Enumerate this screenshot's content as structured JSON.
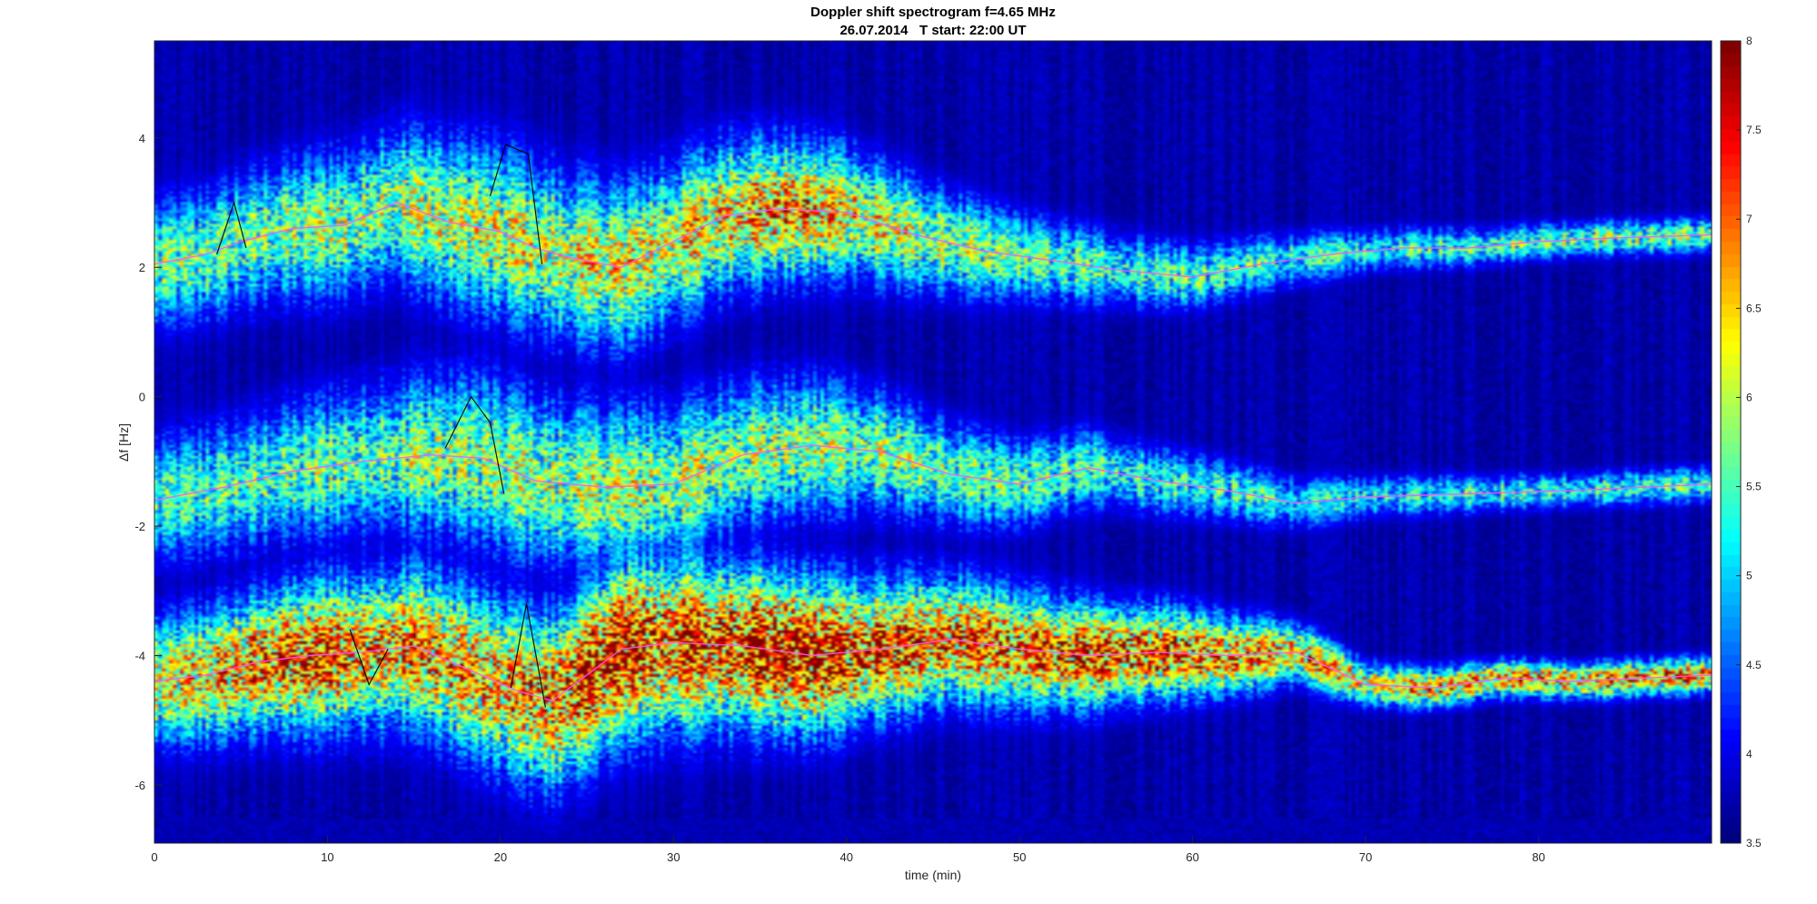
{
  "chart_data": {
    "type": "heatmap",
    "title": "Doppler shift spectrogram f=4.65 MHz",
    "subtitle": "26.07.2014   T start: 22:00 UT",
    "xlabel": "time (min)",
    "ylabel": "Δf [Hz]",
    "xlim": [
      0,
      90
    ],
    "ylim": [
      -6.9,
      5.5
    ],
    "xticks": [
      0,
      10,
      20,
      30,
      40,
      50,
      60,
      70,
      80
    ],
    "yticks": [
      -6,
      -4,
      -2,
      0,
      2,
      4
    ],
    "colorbar": {
      "min": 3.5,
      "max": 8,
      "ticks": [
        3.5,
        4,
        4.5,
        5,
        5.5,
        6,
        6.5,
        7,
        7.5,
        8
      ],
      "colormap": "jet"
    },
    "background_level": 3.6,
    "bands": [
      {
        "center": [
          [
            0,
            2.05
          ],
          [
            3,
            2.2
          ],
          [
            5,
            2.4
          ],
          [
            8,
            2.6
          ],
          [
            11,
            2.65
          ],
          [
            14,
            3.0
          ],
          [
            17,
            2.7
          ],
          [
            20,
            2.55
          ],
          [
            22,
            2.3
          ],
          [
            24,
            2.15
          ],
          [
            27,
            2.0
          ],
          [
            30,
            2.4
          ],
          [
            33,
            2.8
          ],
          [
            36,
            2.9
          ],
          [
            40,
            2.85
          ],
          [
            44,
            2.5
          ],
          [
            48,
            2.25
          ],
          [
            52,
            2.1
          ],
          [
            56,
            1.95
          ],
          [
            60,
            1.85
          ],
          [
            64,
            2.05
          ],
          [
            68,
            2.2
          ],
          [
            72,
            2.3
          ],
          [
            76,
            2.3
          ],
          [
            80,
            2.4
          ],
          [
            84,
            2.45
          ],
          [
            90,
            2.5
          ]
        ],
        "width": [
          [
            0,
            0.85
          ],
          [
            10,
            1.0
          ],
          [
            20,
            1.2
          ],
          [
            30,
            1.1
          ],
          [
            40,
            0.9
          ],
          [
            50,
            0.6
          ],
          [
            60,
            0.45
          ],
          [
            70,
            0.3
          ],
          [
            80,
            0.25
          ],
          [
            90,
            0.25
          ]
        ],
        "peak": [
          [
            0,
            5.6
          ],
          [
            10,
            5.9
          ],
          [
            20,
            6.1
          ],
          [
            30,
            6.3
          ],
          [
            36,
            6.9
          ],
          [
            40,
            6.4
          ],
          [
            50,
            5.6
          ],
          [
            60,
            5.5
          ],
          [
            70,
            5.3
          ],
          [
            80,
            5.7
          ],
          [
            90,
            5.8
          ]
        ]
      },
      {
        "center": [
          [
            0,
            -1.6
          ],
          [
            4,
            -1.4
          ],
          [
            8,
            -1.15
          ],
          [
            12,
            -1.0
          ],
          [
            16,
            -0.9
          ],
          [
            19,
            -0.95
          ],
          [
            22,
            -1.3
          ],
          [
            26,
            -1.4
          ],
          [
            30,
            -1.35
          ],
          [
            34,
            -0.9
          ],
          [
            38,
            -0.75
          ],
          [
            42,
            -0.85
          ],
          [
            46,
            -1.2
          ],
          [
            50,
            -1.35
          ],
          [
            54,
            -1.1
          ],
          [
            58,
            -1.3
          ],
          [
            62,
            -1.45
          ],
          [
            66,
            -1.65
          ],
          [
            70,
            -1.55
          ],
          [
            76,
            -1.5
          ],
          [
            82,
            -1.45
          ],
          [
            90,
            -1.35
          ]
        ],
        "width": [
          [
            0,
            0.85
          ],
          [
            10,
            1.0
          ],
          [
            20,
            1.2
          ],
          [
            30,
            1.1
          ],
          [
            40,
            0.9
          ],
          [
            50,
            0.6
          ],
          [
            60,
            0.45
          ],
          [
            70,
            0.3
          ],
          [
            80,
            0.25
          ],
          [
            90,
            0.25
          ]
        ],
        "peak": [
          [
            0,
            5.4
          ],
          [
            10,
            5.7
          ],
          [
            20,
            5.9
          ],
          [
            30,
            6.0
          ],
          [
            40,
            5.9
          ],
          [
            50,
            5.6
          ],
          [
            60,
            5.4
          ],
          [
            70,
            5.2
          ],
          [
            80,
            5.4
          ],
          [
            90,
            5.5
          ]
        ]
      },
      {
        "center": [
          [
            0,
            -4.4
          ],
          [
            3,
            -4.3
          ],
          [
            6,
            -4.1
          ],
          [
            9,
            -4.0
          ],
          [
            12,
            -3.95
          ],
          [
            15,
            -3.85
          ],
          [
            18,
            -4.2
          ],
          [
            21,
            -4.55
          ],
          [
            23,
            -4.7
          ],
          [
            25,
            -4.3
          ],
          [
            27,
            -3.9
          ],
          [
            30,
            -3.8
          ],
          [
            34,
            -3.85
          ],
          [
            38,
            -4.0
          ],
          [
            42,
            -3.9
          ],
          [
            46,
            -3.75
          ],
          [
            50,
            -3.9
          ],
          [
            54,
            -4.0
          ],
          [
            58,
            -3.95
          ],
          [
            62,
            -4.0
          ],
          [
            66,
            -3.95
          ],
          [
            70,
            -4.45
          ],
          [
            74,
            -4.5
          ],
          [
            78,
            -4.35
          ],
          [
            82,
            -4.4
          ],
          [
            86,
            -4.35
          ],
          [
            90,
            -4.3
          ]
        ],
        "width": [
          [
            0,
            0.85
          ],
          [
            10,
            1.05
          ],
          [
            20,
            1.2
          ],
          [
            30,
            1.25
          ],
          [
            40,
            1.0
          ],
          [
            50,
            0.8
          ],
          [
            60,
            0.6
          ],
          [
            70,
            0.3
          ],
          [
            80,
            0.25
          ],
          [
            90,
            0.25
          ]
        ],
        "peak": [
          [
            0,
            6.2
          ],
          [
            8,
            7.3
          ],
          [
            12,
            7.0
          ],
          [
            20,
            6.6
          ],
          [
            26,
            7.6
          ],
          [
            32,
            7.2
          ],
          [
            37,
            7.9
          ],
          [
            42,
            7.2
          ],
          [
            50,
            6.9
          ],
          [
            56,
            7.4
          ],
          [
            62,
            6.9
          ],
          [
            70,
            6.4
          ],
          [
            76,
            6.8
          ],
          [
            80,
            7.0
          ],
          [
            90,
            6.8
          ]
        ]
      }
    ],
    "traces": [
      {
        "color": "#ff55ff",
        "points": [
          [
            0,
            2.05
          ],
          [
            3,
            2.2
          ],
          [
            5,
            2.4
          ],
          [
            8,
            2.6
          ],
          [
            11,
            2.65
          ],
          [
            14,
            3.0
          ],
          [
            17,
            2.7
          ],
          [
            20,
            2.55
          ],
          [
            22,
            2.3
          ],
          [
            24,
            2.15
          ],
          [
            27,
            2.0
          ],
          [
            30,
            2.4
          ],
          [
            33,
            2.8
          ],
          [
            36,
            2.9
          ],
          [
            40,
            2.85
          ],
          [
            44,
            2.5
          ],
          [
            48,
            2.25
          ],
          [
            52,
            2.1
          ],
          [
            56,
            1.95
          ],
          [
            60,
            1.85
          ],
          [
            64,
            2.05
          ],
          [
            68,
            2.2
          ],
          [
            72,
            2.3
          ],
          [
            76,
            2.3
          ],
          [
            80,
            2.4
          ],
          [
            84,
            2.45
          ],
          [
            90,
            2.5
          ]
        ]
      },
      {
        "color": "#ff55ff",
        "points": [
          [
            0,
            -1.6
          ],
          [
            4,
            -1.4
          ],
          [
            8,
            -1.15
          ],
          [
            12,
            -1.0
          ],
          [
            16,
            -0.9
          ],
          [
            19,
            -0.95
          ],
          [
            22,
            -1.3
          ],
          [
            26,
            -1.4
          ],
          [
            30,
            -1.35
          ],
          [
            34,
            -0.9
          ],
          [
            38,
            -0.75
          ],
          [
            42,
            -0.85
          ],
          [
            46,
            -1.2
          ],
          [
            50,
            -1.35
          ],
          [
            54,
            -1.1
          ],
          [
            58,
            -1.3
          ],
          [
            62,
            -1.45
          ],
          [
            66,
            -1.65
          ],
          [
            70,
            -1.55
          ],
          [
            76,
            -1.5
          ],
          [
            82,
            -1.45
          ],
          [
            90,
            -1.35
          ]
        ]
      },
      {
        "color": "#ff55ff",
        "points": [
          [
            0,
            -4.4
          ],
          [
            3,
            -4.3
          ],
          [
            6,
            -4.1
          ],
          [
            9,
            -4.0
          ],
          [
            12,
            -3.95
          ],
          [
            15,
            -3.85
          ],
          [
            18,
            -4.2
          ],
          [
            21,
            -4.55
          ],
          [
            23,
            -4.7
          ],
          [
            25,
            -4.3
          ],
          [
            27,
            -3.9
          ],
          [
            30,
            -3.8
          ],
          [
            34,
            -3.85
          ],
          [
            38,
            -4.0
          ],
          [
            42,
            -3.9
          ],
          [
            46,
            -3.75
          ],
          [
            50,
            -3.9
          ],
          [
            54,
            -4.0
          ],
          [
            58,
            -3.95
          ],
          [
            62,
            -4.0
          ],
          [
            66,
            -3.95
          ],
          [
            70,
            -4.45
          ],
          [
            74,
            -4.5
          ],
          [
            78,
            -4.35
          ],
          [
            82,
            -4.4
          ],
          [
            86,
            -4.35
          ],
          [
            90,
            -4.3
          ]
        ]
      },
      {
        "color": "#000000",
        "points": [
          [
            3.6,
            2.2
          ],
          [
            4.6,
            3.0
          ],
          [
            5.3,
            2.3
          ]
        ]
      },
      {
        "color": "#000000",
        "points": [
          [
            19.4,
            3.1
          ],
          [
            20.3,
            3.9
          ],
          [
            21.6,
            3.75
          ],
          [
            22.4,
            2.05
          ]
        ]
      },
      {
        "color": "#000000",
        "points": [
          [
            16.8,
            -0.8
          ],
          [
            18.3,
            0.0
          ],
          [
            19.4,
            -0.4
          ],
          [
            20.2,
            -1.5
          ]
        ]
      },
      {
        "color": "#000000",
        "points": [
          [
            11.3,
            -3.6
          ],
          [
            12.4,
            -4.45
          ],
          [
            13.5,
            -3.9
          ]
        ]
      },
      {
        "color": "#000000",
        "points": [
          [
            20.6,
            -4.5
          ],
          [
            21.5,
            -3.2
          ],
          [
            22.6,
            -4.8
          ]
        ]
      }
    ]
  }
}
